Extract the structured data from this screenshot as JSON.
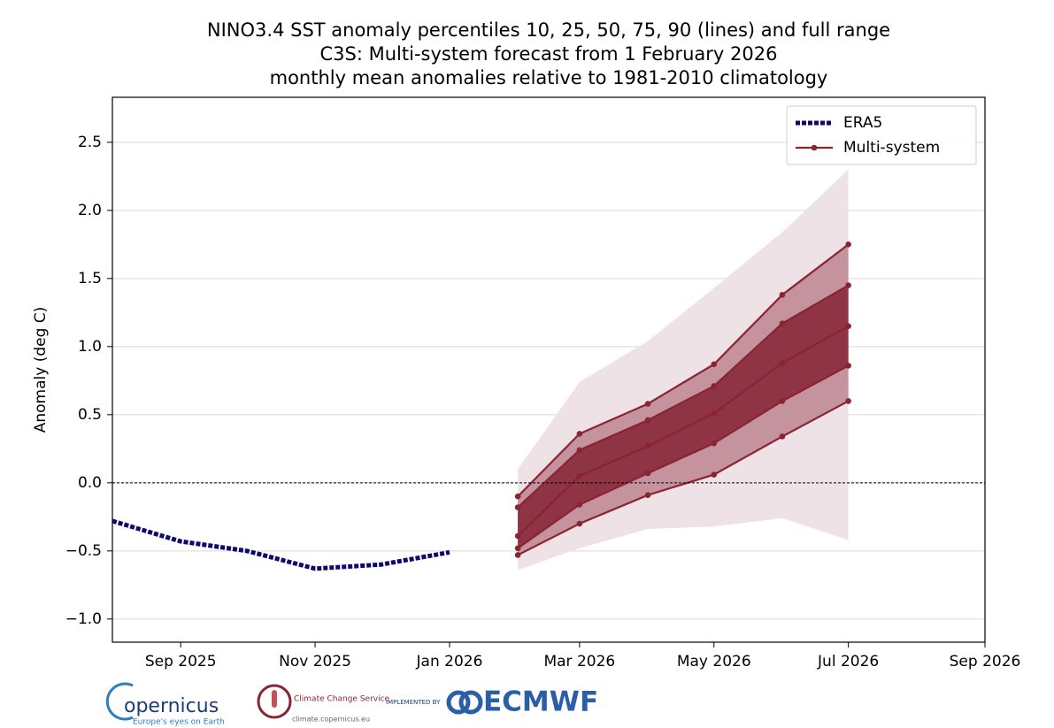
{
  "chart_data": {
    "type": "fan",
    "title": [
      "NINO3.4 SST anomaly percentiles 10, 25, 50, 75, 90 (lines) and full range",
      "C3S: Multi-system forecast from 1 February 2026",
      "monthly mean anomalies relative to 1981-2010 climatology"
    ],
    "ylabel": "Anomaly (deg C)",
    "xlim": [
      "Aug 2025",
      "Sep 2026"
    ],
    "xticks": [
      "Sep 2025",
      "Nov 2025",
      "Jan 2026",
      "Mar 2026",
      "May 2026",
      "Jul 2026",
      "Sep 2026"
    ],
    "ylim": [
      -1.17,
      2.83
    ],
    "yticks": [
      {
        "value": -1,
        "label": "−1.0"
      },
      {
        "value": -0.5,
        "label": "−0.5"
      },
      {
        "value": 0,
        "label": "0.0"
      },
      0.5,
      {
        "value": 1,
        "label": "1.0"
      },
      1.5,
      {
        "value": 2,
        "label": "2.0"
      },
      2.5
    ],
    "grid": true,
    "reference_line": 0,
    "legend": "upper right",
    "series": [
      {
        "name": "ERA5",
        "color": "#0d0a6b",
        "style": "dotted",
        "x": [
          "Aug 2025",
          "Sep 2025",
          "Oct 2025",
          "Nov 2025",
          "Dec 2025",
          "Jan 2026"
        ],
        "values": [
          -0.28,
          -0.43,
          -0.5,
          -0.63,
          -0.6,
          -0.51
        ]
      },
      {
        "name": "Multi-system",
        "color": "#8a2432",
        "band_color": "#c4939e",
        "inner_color": "#8e3444",
        "range_color": "#efe2e6",
        "x": [
          "Feb 2026",
          "Mar 2026",
          "Apr 2026",
          "May 2026",
          "Jun 2026",
          "Jul 2026"
        ],
        "lines": [
          [
            -0.53,
            -0.3,
            -0.09,
            0.06,
            0.34,
            0.6
          ],
          [
            -0.48,
            -0.16,
            0.07,
            0.29,
            0.6,
            0.86
          ],
          [
            -0.39,
            0.05,
            0.27,
            0.51,
            0.88,
            1.15
          ],
          [
            -0.18,
            0.24,
            0.46,
            0.71,
            1.17,
            1.45
          ],
          [
            -0.1,
            0.36,
            0.58,
            0.87,
            1.38,
            1.75
          ]
        ],
        "range_low": [
          -0.64,
          -0.48,
          -0.34,
          -0.32,
          -0.26,
          -0.42
        ],
        "range_high": [
          0.1,
          0.74,
          1.04,
          1.43,
          1.84,
          2.3
        ]
      }
    ]
  },
  "footer": {
    "copernicus": "opernicus",
    "copernicus_tagline": "Europe's eyes on Earth",
    "c3s": "Climate Change Service",
    "c3s_url": "climate.copernicus.eu",
    "implemented_by": "IMPLEMENTED BY",
    "ecmwf": "ECMWF"
  }
}
